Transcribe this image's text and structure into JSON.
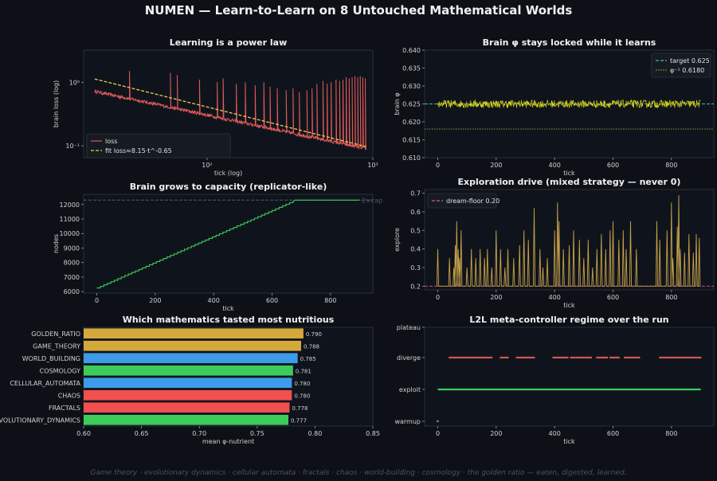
{
  "suptitle": "NUMEN — Learn-to-Learn on 8 Untouched Mathematical Worlds",
  "footer": "Game theory · evolutionary dynamics · cellular automata · fractals · chaos · world-building · cosmology · the golden ratio — eaten, digested, learned.",
  "colors": {
    "loss": "#e05a5a",
    "fit": "#f2c94c",
    "phi": "#f2d70a",
    "target": "#3fc0a0",
    "phiinv": "#7d9a3c",
    "nodes": "#3dcc5b",
    "cap": "#555a60",
    "explore": "#c9a24a",
    "floor": "#e05a7a",
    "diverge": "#e05a5a",
    "exploit": "#3dcc5b",
    "warmup": "#8aa0c0"
  },
  "chart_data": [
    {
      "type": "line",
      "title": "Learning is a power law",
      "xlabel": "tick (log)",
      "ylabel": "brain loss (log)",
      "xscale": "log",
      "yscale": "log",
      "xlim": [
        18,
        1000
      ],
      "ylim": [
        0.065,
        3.2
      ],
      "xticks": [
        {
          "v": 100,
          "label": "10²"
        },
        {
          "v": 1000,
          "label": "10³"
        }
      ],
      "yticks": [
        {
          "v": 0.1,
          "label": "10⁻¹"
        },
        {
          "v": 1,
          "label": "10⁰"
        }
      ],
      "legend_position": "lower-left",
      "series": [
        {
          "name": "loss",
          "style": "noisy-decay",
          "start": [
            21,
            0.72
          ],
          "end": [
            910,
            0.09
          ],
          "spikes": [
            [
              34,
              1.5
            ],
            [
              60,
              1.4
            ],
            [
              66,
              1.3
            ],
            [
              90,
              1.1
            ],
            [
              115,
              1.0
            ],
            [
              125,
              1.15
            ],
            [
              150,
              0.95
            ],
            [
              170,
              1.0
            ],
            [
              195,
              0.9
            ],
            [
              220,
              1.0
            ],
            [
              240,
              0.85
            ],
            [
              265,
              0.8
            ],
            [
              300,
              0.75
            ],
            [
              330,
              0.8
            ],
            [
              360,
              0.7
            ],
            [
              400,
              0.75
            ],
            [
              430,
              0.8
            ],
            [
              460,
              0.95
            ],
            [
              500,
              1.05
            ],
            [
              530,
              0.95
            ],
            [
              560,
              1.0
            ],
            [
              600,
              1.1
            ],
            [
              630,
              1.05
            ],
            [
              660,
              1.1
            ],
            [
              690,
              1.2
            ],
            [
              720,
              1.15
            ],
            [
              750,
              1.2
            ],
            [
              780,
              1.25
            ],
            [
              810,
              1.2
            ],
            [
              840,
              1.25
            ],
            [
              870,
              1.2
            ],
            [
              900,
              1.15
            ]
          ]
        },
        {
          "name": "fit  loss≈8.15·t^-0.65",
          "a": 8.15,
          "b": -0.65,
          "range": [
            21,
            910
          ]
        }
      ]
    },
    {
      "type": "line",
      "title": "Brain φ stays locked while it learns",
      "xlabel": "tick",
      "ylabel": "brain φ",
      "xlim": [
        -45,
        945
      ],
      "ylim": [
        0.61,
        0.64
      ],
      "xticks": [
        0,
        200,
        400,
        600,
        800
      ],
      "yticks": [
        0.61,
        0.615,
        0.62,
        0.625,
        0.63,
        0.635,
        0.64
      ],
      "ytick_labels": [
        "0.610",
        "0.615",
        "0.620",
        "0.625",
        "0.630",
        "0.635",
        "0.640"
      ],
      "legend_position": "top-right",
      "series": [
        {
          "name": "brain φ",
          "style": "noise",
          "range": [
            0,
            900
          ],
          "mean": 0.625,
          "amplitude": 0.0011
        },
        {
          "name": "target 0.625",
          "hline": 0.625
        },
        {
          "name": "φ⁻¹ 0.6180",
          "hline": 0.618
        }
      ]
    },
    {
      "type": "line",
      "title": "Brain grows to capacity (replicator-like)",
      "xlabel": "tick",
      "ylabel": "nodes",
      "xlim": [
        -45,
        945
      ],
      "ylim": [
        5900,
        12700
      ],
      "xticks": [
        0,
        200,
        400,
        600,
        800
      ],
      "yticks": [
        6000,
        7000,
        8000,
        9000,
        10000,
        11000,
        12000
      ],
      "cap_label": "2×cap",
      "series": [
        {
          "name": "nodes",
          "style": "staircase",
          "start": [
            0,
            6250
          ],
          "cap_x": 680,
          "cap_y": 12300,
          "end_x": 900,
          "step_every": 12
        },
        {
          "name": "2×cap",
          "hline": 12300
        }
      ]
    },
    {
      "type": "line",
      "title": "Exploration drive (mixed strategy — never 0)",
      "xlabel": "tick",
      "ylabel": "explore",
      "xlim": [
        -45,
        945
      ],
      "ylim": [
        0.18,
        0.72
      ],
      "xticks": [
        0,
        200,
        400,
        600,
        800
      ],
      "yticks": [
        0.2,
        0.3,
        0.4,
        0.5,
        0.6,
        0.7
      ],
      "ytick_labels": [
        "0.2",
        "0.3",
        "0.4",
        "0.5",
        "0.6",
        "0.7"
      ],
      "legend_position": "top-left",
      "series": [
        {
          "name": "explore",
          "style": "spiky",
          "floor": 0.2,
          "peaks": [
            [
              0,
              0.4
            ],
            [
              40,
              0.35
            ],
            [
              55,
              0.3
            ],
            [
              60,
              0.42
            ],
            [
              65,
              0.55
            ],
            [
              70,
              0.4
            ],
            [
              75,
              0.35
            ],
            [
              80,
              0.5
            ],
            [
              100,
              0.3
            ],
            [
              115,
              0.4
            ],
            [
              130,
              0.35
            ],
            [
              145,
              0.4
            ],
            [
              160,
              0.35
            ],
            [
              170,
              0.4
            ],
            [
              185,
              0.3
            ],
            [
              200,
              0.5
            ],
            [
              215,
              0.4
            ],
            [
              230,
              0.3
            ],
            [
              240,
              0.4
            ],
            [
              260,
              0.35
            ],
            [
              280,
              0.42
            ],
            [
              295,
              0.5
            ],
            [
              310,
              0.45
            ],
            [
              330,
              0.62
            ],
            [
              350,
              0.4
            ],
            [
              360,
              0.3
            ],
            [
              375,
              0.35
            ],
            [
              400,
              0.5
            ],
            [
              410,
              0.65
            ],
            [
              415,
              0.55
            ],
            [
              430,
              0.4
            ],
            [
              450,
              0.42
            ],
            [
              465,
              0.5
            ],
            [
              485,
              0.45
            ],
            [
              500,
              0.35
            ],
            [
              515,
              0.45
            ],
            [
              530,
              0.3
            ],
            [
              545,
              0.4
            ],
            [
              560,
              0.48
            ],
            [
              575,
              0.4
            ],
            [
              590,
              0.5
            ],
            [
              600,
              0.55
            ],
            [
              620,
              0.45
            ],
            [
              635,
              0.5
            ],
            [
              645,
              0.4
            ],
            [
              660,
              0.55
            ],
            [
              680,
              0.4
            ],
            [
              750,
              0.55
            ],
            [
              760,
              0.45
            ],
            [
              785,
              0.5
            ],
            [
              800,
              0.65
            ],
            [
              805,
              0.35
            ],
            [
              820,
              0.52
            ],
            [
              825,
              0.69
            ],
            [
              830,
              0.4
            ],
            [
              845,
              0.38
            ],
            [
              860,
              0.48
            ],
            [
              875,
              0.38
            ],
            [
              885,
              0.48
            ],
            [
              895,
              0.46
            ]
          ]
        },
        {
          "name": "dream-floor 0.20",
          "hline": 0.2
        }
      ]
    },
    {
      "type": "bar",
      "orientation": "horizontal",
      "title": "Which mathematics tasted most nutritious",
      "xlabel": "mean φ-nutrient",
      "xlim": [
        0.6,
        0.85
      ],
      "xticks": [
        0.6,
        0.65,
        0.7,
        0.75,
        0.8,
        0.85
      ],
      "xtick_labels": [
        "0.60",
        "0.65",
        "0.70",
        "0.75",
        "0.80",
        "0.85"
      ],
      "categories": [
        "GOLDEN_RATIO",
        "GAME_THEORY",
        "WORLD_BUILDING",
        "COSMOLOGY",
        "CELLULAR_AUTOMATA",
        "CHAOS",
        "FRACTALS",
        "EVOLUTIONARY_DYNAMICS"
      ],
      "values": [
        0.79,
        0.788,
        0.785,
        0.781,
        0.78,
        0.78,
        0.778,
        0.777
      ],
      "value_labels": [
        "0.790",
        "0.788",
        "0.785",
        "0.781",
        "0.780",
        "0.780",
        "0.778",
        "0.777"
      ],
      "bar_colors": [
        "#d4a83a",
        "#d4a83a",
        "#3d9be9",
        "#3dcc5b",
        "#3d9be9",
        "#f05050",
        "#f05050",
        "#3dcc5b"
      ]
    },
    {
      "type": "scatter",
      "title": "L2L meta-controller regime over the run",
      "xlabel": "tick",
      "xlim": [
        -45,
        945
      ],
      "xticks": [
        0,
        200,
        400,
        600,
        800
      ],
      "categories": [
        "warmup",
        "exploit",
        "diverge",
        "plateau"
      ],
      "series": [
        {
          "name": "warmup",
          "y": "warmup",
          "ranges": [
            [
              0,
              2
            ]
          ]
        },
        {
          "name": "exploit",
          "y": "exploit",
          "ranges": [
            [
              0,
              900
            ]
          ]
        },
        {
          "name": "diverge",
          "y": "diverge",
          "ranges": [
            [
              40,
              185
            ],
            [
              215,
              240
            ],
            [
              270,
              330
            ],
            [
              395,
              445
            ],
            [
              455,
              525
            ],
            [
              545,
              580
            ],
            [
              590,
              620
            ],
            [
              640,
              690
            ],
            [
              760,
              810
            ],
            [
              815,
              900
            ]
          ]
        }
      ]
    }
  ]
}
